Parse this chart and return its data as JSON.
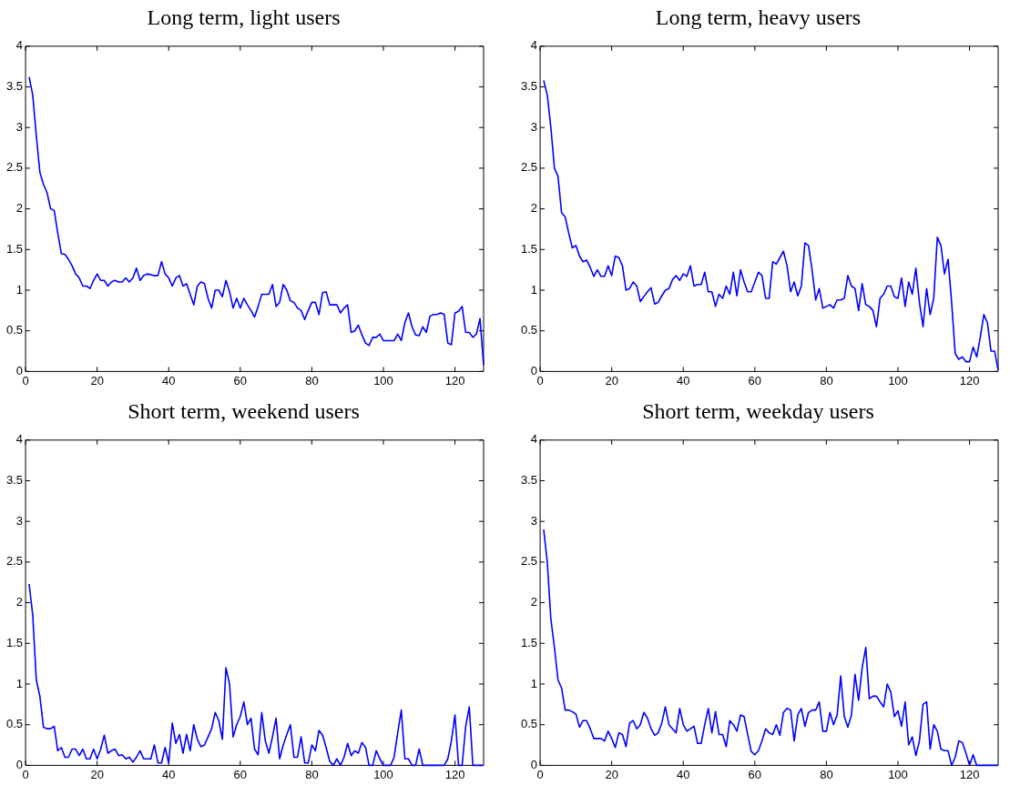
{
  "chart_data": [
    {
      "type": "line",
      "title": "Long term, light users",
      "color": "#0000ff",
      "xlim": [
        0,
        128
      ],
      "xticks": [
        0,
        20,
        40,
        60,
        80,
        100,
        120
      ],
      "ylim": [
        0,
        4
      ],
      "yticks": [
        0,
        0.5,
        1,
        1.5,
        2,
        2.5,
        3,
        3.5,
        4
      ],
      "x": [
        1,
        2,
        3,
        4,
        5,
        6,
        7,
        8,
        9,
        10,
        11,
        12,
        13,
        14,
        15,
        16,
        17,
        18,
        19,
        20,
        21,
        22,
        23,
        24,
        25,
        26,
        27,
        28,
        29,
        30,
        31,
        32,
        33,
        34,
        36,
        37,
        38,
        39,
        40,
        41,
        42,
        43,
        44,
        45,
        46,
        47,
        48,
        49,
        50,
        51,
        52,
        53,
        54,
        55,
        56,
        57,
        58,
        59,
        60,
        61,
        62,
        63,
        64,
        65,
        66,
        67,
        68,
        69,
        70,
        71,
        72,
        73,
        74,
        75,
        76,
        77,
        78,
        79,
        80,
        81,
        82,
        83,
        84,
        85,
        86,
        87,
        88,
        89,
        90,
        91,
        92,
        93,
        94,
        95,
        96,
        97,
        98,
        99,
        100,
        101,
        102,
        103,
        104,
        105,
        106,
        107,
        108,
        109,
        110,
        111,
        112,
        113,
        114,
        115,
        116,
        117,
        118,
        119,
        120,
        121,
        122,
        123,
        124,
        125,
        126,
        127,
        128
      ],
      "values": [
        3.62,
        3.4,
        2.9,
        2.45,
        2.3,
        2.2,
        2.0,
        1.98,
        1.7,
        1.45,
        1.44,
        1.38,
        1.3,
        1.2,
        1.15,
        1.05,
        1.05,
        1.02,
        1.12,
        1.2,
        1.12,
        1.12,
        1.05,
        1.1,
        1.12,
        1.1,
        1.1,
        1.15,
        1.1,
        1.15,
        1.27,
        1.12,
        1.18,
        1.2,
        1.18,
        1.18,
        1.35,
        1.2,
        1.15,
        1.05,
        1.15,
        1.18,
        1.05,
        1.08,
        0.95,
        0.82,
        1.05,
        1.1,
        1.08,
        0.9,
        0.78,
        1.0,
        1.0,
        0.92,
        1.12,
        0.98,
        0.78,
        0.9,
        0.78,
        0.9,
        0.82,
        0.75,
        0.67,
        0.8,
        0.95,
        0.95,
        0.95,
        1.07,
        0.8,
        0.85,
        1.07,
        1.0,
        0.87,
        0.85,
        0.78,
        0.75,
        0.64,
        0.75,
        0.85,
        0.85,
        0.7,
        0.97,
        0.98,
        0.82,
        0.82,
        0.82,
        0.72,
        0.78,
        0.82,
        0.48,
        0.5,
        0.57,
        0.45,
        0.35,
        0.32,
        0.42,
        0.42,
        0.46,
        0.38,
        0.38,
        0.38,
        0.38,
        0.46,
        0.38,
        0.6,
        0.72,
        0.55,
        0.45,
        0.44,
        0.55,
        0.48,
        0.68,
        0.7,
        0.7,
        0.72,
        0.7,
        0.35,
        0.33,
        0.72,
        0.74,
        0.8,
        0.48,
        0.48,
        0.42,
        0.46,
        0.65,
        0.08
      ]
    },
    {
      "type": "line",
      "title": "Long term, heavy users",
      "color": "#0000ff",
      "xlim": [
        0,
        128
      ],
      "xticks": [
        0,
        20,
        40,
        60,
        80,
        100,
        120
      ],
      "ylim": [
        0,
        4
      ],
      "yticks": [
        0,
        0.5,
        1,
        1.5,
        2,
        2.5,
        3,
        3.5,
        4
      ],
      "x": [
        1,
        2,
        3,
        4,
        5,
        6,
        7,
        8,
        9,
        10,
        11,
        12,
        13,
        14,
        15,
        16,
        17,
        18,
        19,
        20,
        21,
        22,
        23,
        24,
        25,
        26,
        27,
        28,
        29,
        30,
        31,
        32,
        33,
        34,
        35,
        36,
        37,
        38,
        39,
        40,
        41,
        42,
        43,
        44,
        45,
        46,
        47,
        48,
        49,
        50,
        51,
        52,
        53,
        54,
        55,
        56,
        57,
        58,
        59,
        60,
        61,
        62,
        63,
        64,
        65,
        66,
        67,
        68,
        69,
        70,
        71,
        72,
        73,
        74,
        75,
        76,
        77,
        78,
        79,
        80,
        81,
        82,
        83,
        84,
        85,
        86,
        87,
        88,
        89,
        90,
        91,
        92,
        93,
        94,
        95,
        96,
        97,
        98,
        99,
        100,
        101,
        102,
        103,
        104,
        105,
        106,
        107,
        108,
        109,
        110,
        111,
        112,
        113,
        114,
        115,
        116,
        117,
        118,
        119,
        120,
        121,
        122,
        123,
        124,
        125,
        126,
        127,
        128
      ],
      "values": [
        3.58,
        3.4,
        3.0,
        2.5,
        2.4,
        1.95,
        1.9,
        1.7,
        1.52,
        1.55,
        1.42,
        1.35,
        1.37,
        1.28,
        1.17,
        1.25,
        1.17,
        1.17,
        1.3,
        1.18,
        1.42,
        1.4,
        1.3,
        1.0,
        1.02,
        1.1,
        1.05,
        0.86,
        0.92,
        0.98,
        1.03,
        0.83,
        0.85,
        0.93,
        1.0,
        1.02,
        1.13,
        1.18,
        1.12,
        1.2,
        1.17,
        1.3,
        1.05,
        1.07,
        1.07,
        1.22,
        0.98,
        0.98,
        0.8,
        0.95,
        0.9,
        1.05,
        0.95,
        1.22,
        0.93,
        1.25,
        1.1,
        0.98,
        0.98,
        1.1,
        1.22,
        1.18,
        0.9,
        0.9,
        1.35,
        1.32,
        1.4,
        1.48,
        1.3,
        0.98,
        1.1,
        0.93,
        1.05,
        1.58,
        1.55,
        1.25,
        0.88,
        1.02,
        0.78,
        0.8,
        0.82,
        0.78,
        0.88,
        0.88,
        0.9,
        1.18,
        1.05,
        1.02,
        0.75,
        1.08,
        0.82,
        0.8,
        0.75,
        0.55,
        0.9,
        0.95,
        1.05,
        1.05,
        0.92,
        0.9,
        1.15,
        0.8,
        1.1,
        0.95,
        1.27,
        0.85,
        0.55,
        1.02,
        0.7,
        0.9,
        1.65,
        1.55,
        1.2,
        1.38,
        0.85,
        0.22,
        0.15,
        0.18,
        0.12,
        0.12,
        0.3,
        0.18,
        0.42,
        0.7,
        0.6,
        0.25,
        0.25,
        0.02
      ]
    },
    {
      "type": "line",
      "title": "Short term, weekend users",
      "color": "#0000ff",
      "xlim": [
        0,
        128
      ],
      "xticks": [
        0,
        20,
        40,
        60,
        80,
        100,
        120
      ],
      "ylim": [
        0,
        4
      ],
      "yticks": [
        0,
        0.5,
        1,
        1.5,
        2,
        2.5,
        3,
        3.5,
        4
      ],
      "x": [
        1,
        2,
        3,
        4,
        5,
        6,
        7,
        8,
        9,
        10,
        11,
        12,
        13,
        14,
        15,
        16,
        17,
        18,
        19,
        20,
        21,
        22,
        23,
        24,
        25,
        26,
        27,
        28,
        29,
        30,
        31,
        32,
        33,
        34,
        35,
        36,
        37,
        38,
        39,
        40,
        41,
        42,
        43,
        44,
        45,
        46,
        47,
        48,
        49,
        50,
        51,
        52,
        53,
        54,
        55,
        56,
        57,
        58,
        59,
        60,
        61,
        62,
        63,
        64,
        65,
        66,
        67,
        68,
        69,
        70,
        71,
        72,
        73,
        74,
        75,
        76,
        77,
        78,
        79,
        80,
        81,
        82,
        83,
        84,
        85,
        86,
        87,
        88,
        89,
        90,
        91,
        92,
        93,
        94,
        95,
        96,
        97,
        98,
        99,
        100,
        101,
        102,
        103,
        104,
        105,
        106,
        107,
        108,
        109,
        110,
        111,
        117,
        118,
        119,
        120,
        121,
        122,
        123,
        124,
        125,
        128
      ],
      "values": [
        2.23,
        1.85,
        1.05,
        0.85,
        0.47,
        0.45,
        0.45,
        0.48,
        0.18,
        0.22,
        0.1,
        0.1,
        0.2,
        0.2,
        0.12,
        0.2,
        0.08,
        0.08,
        0.2,
        0.08,
        0.2,
        0.37,
        0.15,
        0.18,
        0.2,
        0.12,
        0.13,
        0.08,
        0.1,
        0.04,
        0.1,
        0.18,
        0.08,
        0.08,
        0.08,
        0.25,
        0.03,
        0.03,
        0.22,
        0.03,
        0.52,
        0.27,
        0.38,
        0.15,
        0.38,
        0.18,
        0.5,
        0.32,
        0.23,
        0.25,
        0.35,
        0.45,
        0.65,
        0.55,
        0.32,
        1.2,
        1.0,
        0.35,
        0.5,
        0.6,
        0.78,
        0.5,
        0.58,
        0.2,
        0.13,
        0.65,
        0.3,
        0.15,
        0.35,
        0.58,
        0.08,
        0.25,
        0.38,
        0.5,
        0.1,
        0.1,
        0.35,
        0.03,
        0.03,
        0.25,
        0.18,
        0.43,
        0.37,
        0.22,
        0.05,
        0,
        0.08,
        0,
        0.1,
        0.27,
        0.12,
        0.18,
        0.15,
        0.28,
        0.22,
        0,
        0,
        0.18,
        0.08,
        0,
        0,
        0,
        0.1,
        0.4,
        0.68,
        0.08,
        0.08,
        0,
        0,
        0.2,
        0,
        0,
        0.08,
        0.3,
        0.62,
        0,
        0,
        0.48,
        0.72,
        0,
        0
      ]
    },
    {
      "type": "line",
      "title": "Short term, weekday users",
      "color": "#0000ff",
      "xlim": [
        0,
        128
      ],
      "xticks": [
        0,
        20,
        40,
        60,
        80,
        100,
        120
      ],
      "ylim": [
        0,
        4
      ],
      "yticks": [
        0,
        0.5,
        1,
        1.5,
        2,
        2.5,
        3,
        3.5,
        4
      ],
      "x": [
        1,
        2,
        3,
        4,
        5,
        6,
        7,
        8,
        9,
        10,
        11,
        12,
        13,
        14,
        15,
        16,
        17,
        18,
        19,
        20,
        21,
        22,
        23,
        24,
        25,
        26,
        27,
        28,
        29,
        30,
        31,
        32,
        33,
        34,
        35,
        36,
        37,
        38,
        39,
        40,
        41,
        42,
        43,
        44,
        45,
        46,
        47,
        48,
        49,
        50,
        51,
        52,
        53,
        54,
        55,
        56,
        57,
        58,
        59,
        60,
        61,
        62,
        63,
        64,
        65,
        66,
        67,
        68,
        69,
        70,
        71,
        72,
        73,
        74,
        75,
        76,
        77,
        78,
        79,
        80,
        81,
        82,
        83,
        84,
        85,
        86,
        87,
        88,
        89,
        90,
        91,
        92,
        93,
        94,
        95,
        96,
        97,
        98,
        99,
        100,
        101,
        102,
        103,
        104,
        105,
        106,
        107,
        108,
        109,
        110,
        111,
        112,
        113,
        114,
        115,
        116,
        117,
        118,
        119,
        120,
        121,
        122,
        128
      ],
      "values": [
        2.9,
        2.5,
        1.8,
        1.45,
        1.05,
        0.95,
        0.68,
        0.68,
        0.66,
        0.63,
        0.47,
        0.55,
        0.55,
        0.45,
        0.33,
        0.33,
        0.33,
        0.3,
        0.42,
        0.33,
        0.22,
        0.4,
        0.38,
        0.23,
        0.52,
        0.55,
        0.45,
        0.5,
        0.65,
        0.58,
        0.45,
        0.37,
        0.4,
        0.52,
        0.72,
        0.5,
        0.45,
        0.4,
        0.7,
        0.5,
        0.42,
        0.45,
        0.48,
        0.27,
        0.27,
        0.5,
        0.7,
        0.4,
        0.66,
        0.38,
        0.38,
        0.23,
        0.55,
        0.5,
        0.42,
        0.62,
        0.6,
        0.38,
        0.17,
        0.13,
        0.18,
        0.3,
        0.45,
        0.4,
        0.38,
        0.5,
        0.37,
        0.65,
        0.7,
        0.68,
        0.3,
        0.62,
        0.7,
        0.48,
        0.65,
        0.68,
        0.68,
        0.78,
        0.42,
        0.42,
        0.65,
        0.5,
        0.62,
        1.1,
        0.6,
        0.47,
        0.62,
        1.12,
        0.8,
        1.2,
        1.45,
        0.82,
        0.85,
        0.85,
        0.78,
        0.72,
        1.0,
        0.9,
        0.6,
        0.67,
        0.48,
        0.78,
        0.25,
        0.35,
        0.12,
        0.3,
        0.75,
        0.78,
        0.2,
        0.5,
        0.42,
        0.2,
        0.18,
        0.18,
        0,
        0.1,
        0.3,
        0.28,
        0.15,
        0,
        0.13,
        0,
        0
      ]
    }
  ]
}
